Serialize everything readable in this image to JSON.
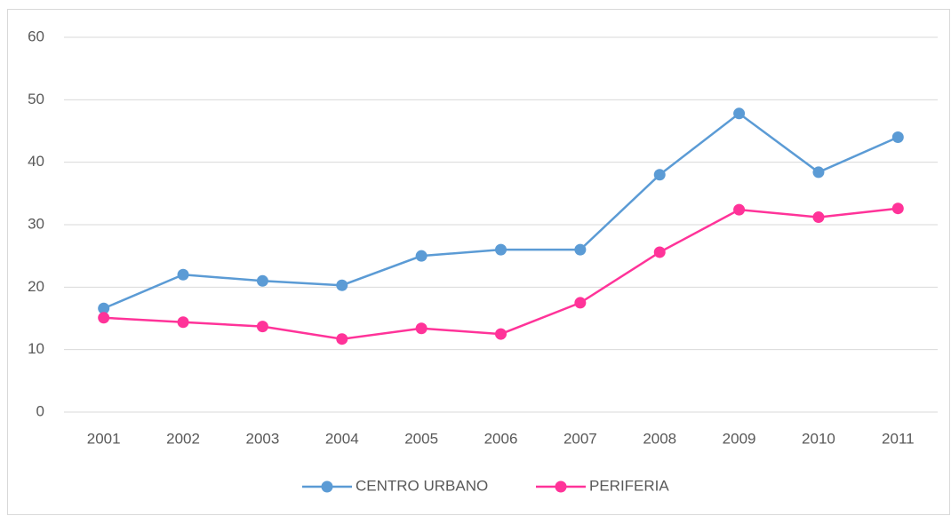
{
  "chart_data": {
    "type": "line",
    "categories": [
      "2001",
      "2002",
      "2003",
      "2004",
      "2005",
      "2006",
      "2007",
      "2008",
      "2009",
      "2010",
      "2011"
    ],
    "series": [
      {
        "name": "CENTRO URBANO",
        "color": "#5b9bd5",
        "values": [
          16.6,
          22.0,
          21.0,
          20.3,
          25.0,
          26.0,
          26.0,
          38.0,
          47.8,
          38.4,
          44.0
        ]
      },
      {
        "name": "PERIFERIA",
        "color": "#ff3399",
        "values": [
          15.1,
          14.4,
          13.7,
          11.7,
          13.4,
          12.5,
          17.5,
          25.6,
          32.4,
          31.2,
          32.6
        ]
      }
    ],
    "ylim": [
      0,
      60
    ],
    "yticks": [
      0,
      10,
      20,
      30,
      40,
      50,
      60
    ],
    "grid": true,
    "legend": "bottom"
  }
}
